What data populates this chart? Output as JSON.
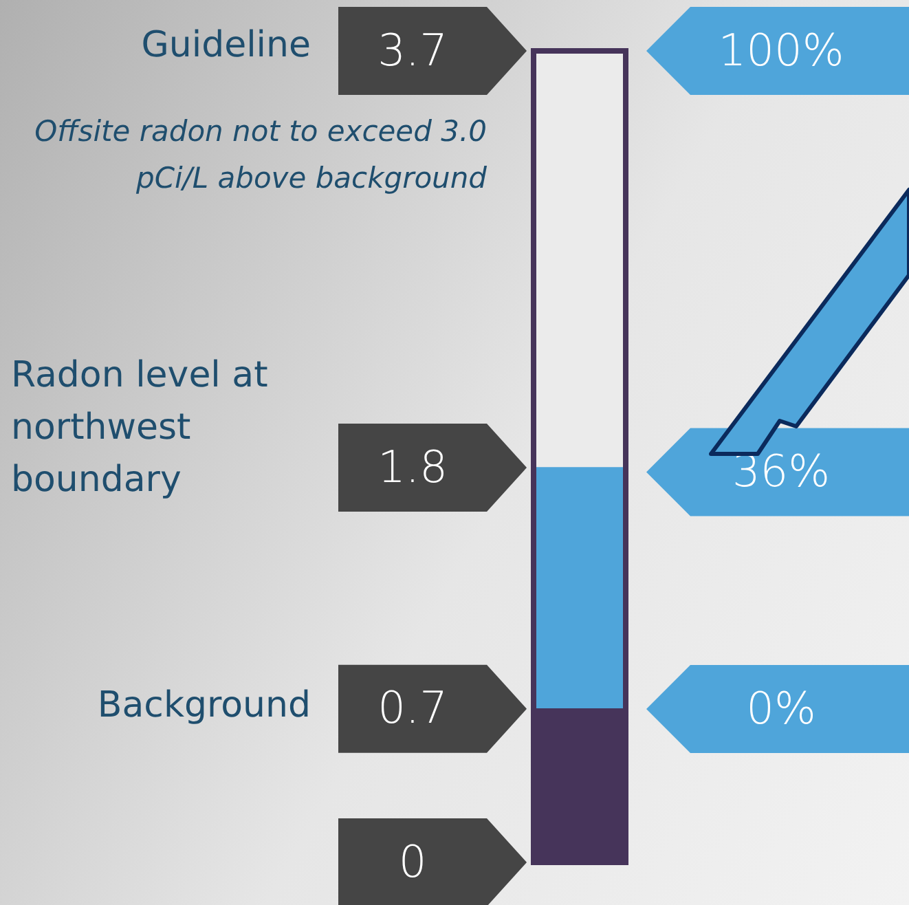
{
  "chart_data": {
    "type": "bar",
    "stacked": true,
    "categories": [
      null
    ],
    "series": [
      {
        "color": "#46345a",
        "values": [
          0.7
        ]
      },
      {
        "color": "#4fa5da",
        "values": [
          1.1
        ]
      },
      {
        "color": "#ebebeb",
        "values": [
          1.9
        ]
      }
    ],
    "ylim": [
      0,
      3.7
    ],
    "yticks": [
      0,
      0.7,
      1.8,
      3.7
    ],
    "y2lim": [
      -23.3,
      100
    ],
    "y2ticks": [
      {
        "value": 0,
        "label": "0%"
      },
      {
        "value": 36,
        "label": "36%"
      },
      {
        "value": 100,
        "label": "100%"
      }
    ],
    "annotations": [
      "Guideline",
      "Offsite radon not to exceed 3.0 pCi/L above background",
      "Radon level at northwest boundary",
      "Background"
    ]
  }
}
